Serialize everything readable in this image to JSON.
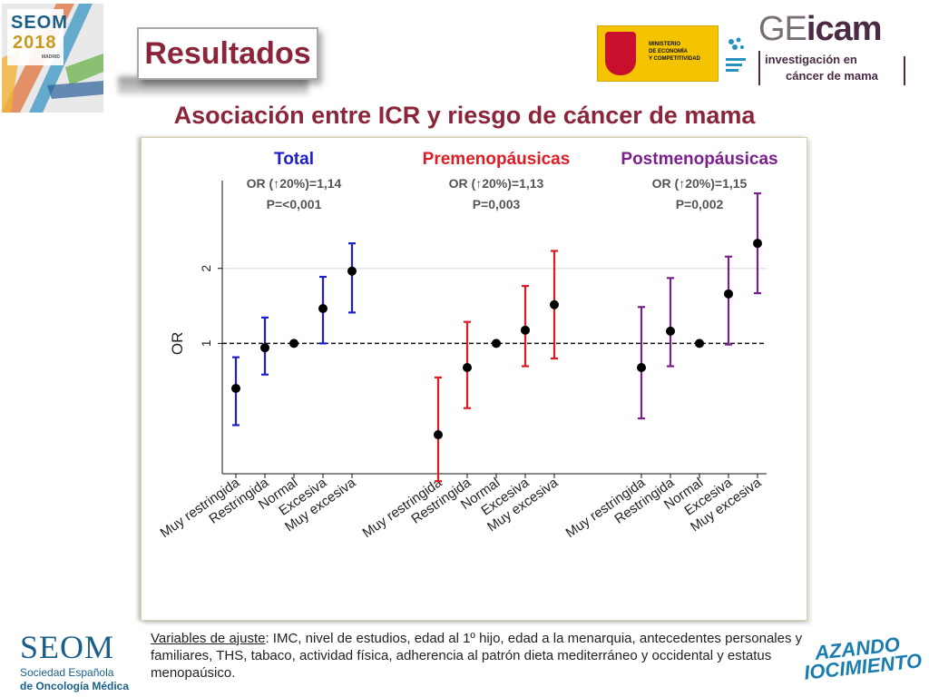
{
  "header": {
    "event_logo": {
      "line1": "SEOM",
      "line2": "2018",
      "line3": "MADRID"
    },
    "slide_title": "Resultados",
    "ministerio_text": [
      "MINISTERIO",
      "DE ECONOMÍA",
      "Y COMPETITIVIDAD"
    ],
    "geicam": {
      "name_part1": "GE",
      "name_part2": "icam",
      "tagline_line1": "investigación en",
      "tagline_line2": "cáncer de mama"
    }
  },
  "heading": "Asociación entre ICR y riesgo de cáncer de mama",
  "chart_data": {
    "type": "scatter",
    "subtype": "forest-plot",
    "ylabel": "OR",
    "yscale": "log",
    "y_ticks": [
      1,
      2
    ],
    "ylim": [
      0.3,
      4.5
    ],
    "reference_line": 1,
    "categories": [
      "Muy restringida",
      "Restringida",
      "Normal",
      "Excesiva",
      "Muy excesiva"
    ],
    "groups": [
      {
        "name": "Total",
        "color": "#1f1fc8",
        "stat1": "OR (↑20%)=1,14",
        "stat2": "P=<0,001",
        "or": [
          0.66,
          0.96,
          1.0,
          1.38,
          1.95
        ],
        "lower": [
          0.47,
          0.75,
          1.0,
          1.0,
          1.33
        ],
        "upper": [
          0.88,
          1.27,
          1.0,
          1.85,
          2.52
        ]
      },
      {
        "name": "Premenopáusicas",
        "color": "#e01b24",
        "stat1": "OR (↑20%)=1,13",
        "stat2": "P=0,003",
        "or": [
          0.43,
          0.8,
          1.0,
          1.13,
          1.43
        ],
        "lower": [
          0.28,
          0.55,
          1.0,
          0.81,
          0.87
        ],
        "upper": [
          0.73,
          1.22,
          1.0,
          1.7,
          2.35
        ]
      },
      {
        "name": "Postmenopáusicas",
        "color": "#7a1f8c",
        "stat1": "OR (↑20%)=1,15",
        "stat2": "P=0,002",
        "or": [
          0.8,
          1.12,
          1.0,
          1.58,
          2.52
        ],
        "lower": [
          0.5,
          0.81,
          1.0,
          0.99,
          1.59
        ],
        "upper": [
          1.4,
          1.83,
          1.0,
          2.23,
          4.0
        ]
      }
    ]
  },
  "footnote": {
    "label": "Variables de ajuste",
    "text": ": IMC, nivel de estudios, edad al 1º hijo, edad a la menarquia, antecedentes personales y familiares, THS, tabaco, actividad física, adherencia al patrón dieta mediterráneo y occidental y estatus menopaúsico."
  },
  "footer": {
    "seom_name": "SEOM",
    "seom_sub1": "Sociedad Española",
    "seom_sub2": "de Oncología Médica",
    "campaign_line1": "AZANDO",
    "campaign_line2": "IOCIMIENTO"
  }
}
